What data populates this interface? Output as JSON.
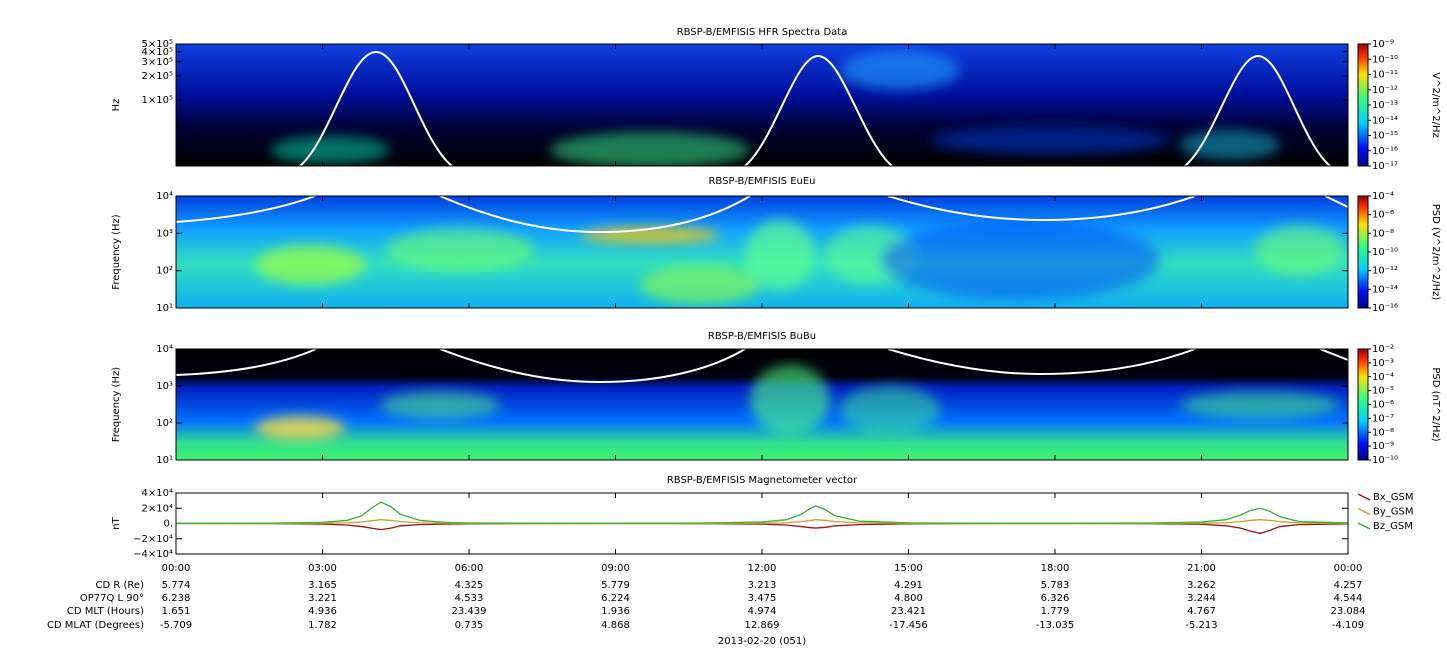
{
  "chart_data": [
    {
      "type": "spectrogram",
      "title": "RBSP-B/EMFISIS  HFR Spectra Data",
      "ylabel": "Hz",
      "log_y": true,
      "ylim": [
        15000,
        500000
      ],
      "yticks": [
        {
          "value": 100000,
          "label": "1×10⁵"
        },
        {
          "value": 200000,
          "label": "2×10⁵"
        },
        {
          "value": 300000,
          "label": "3×10⁵"
        },
        {
          "value": 400000,
          "label": "4×10⁵"
        },
        {
          "value": 500000,
          "label": "5×10⁵"
        }
      ],
      "clim": [
        1e-17,
        1e-09
      ],
      "clabel": "V^2/m^2/Hz",
      "cticks": [
        {
          "value": 1e-09,
          "label": "10⁻⁹"
        },
        {
          "value": 1e-10,
          "label": "10⁻¹⁰"
        },
        {
          "value": 1e-11,
          "label": "10⁻¹¹"
        },
        {
          "value": 1e-12,
          "label": "10⁻¹²"
        },
        {
          "value": 1e-13,
          "label": "10⁻¹³"
        },
        {
          "value": 1e-14,
          "label": "10⁻¹⁴"
        },
        {
          "value": 1e-15,
          "label": "10⁻¹⁵"
        },
        {
          "value": 1e-16,
          "label": "10⁻¹⁶"
        },
        {
          "value": 1e-17,
          "label": "10⁻¹⁷"
        }
      ]
    },
    {
      "type": "spectrogram",
      "title": "RBSP-B/EMFISIS  EuEu",
      "ylabel": "Frequency (Hz)",
      "log_y": true,
      "ylim": [
        10,
        10000
      ],
      "yticks": [
        {
          "value": 10,
          "label": "10¹"
        },
        {
          "value": 100,
          "label": "10²"
        },
        {
          "value": 1000,
          "label": "10³"
        },
        {
          "value": 10000,
          "label": "10⁴"
        }
      ],
      "clim": [
        1e-16,
        0.0001
      ],
      "clabel": "PSD (V^2/m^2/Hz)",
      "cticks": [
        {
          "value": 0.0001,
          "label": "10⁻⁴"
        },
        {
          "value": 1e-06,
          "label": "10⁻⁶"
        },
        {
          "value": 1e-08,
          "label": "10⁻⁸"
        },
        {
          "value": 1e-10,
          "label": "10⁻¹⁰"
        },
        {
          "value": 1e-12,
          "label": "10⁻¹²"
        },
        {
          "value": 1e-14,
          "label": "10⁻¹⁴"
        },
        {
          "value": 1e-16,
          "label": "10⁻¹⁶"
        }
      ]
    },
    {
      "type": "spectrogram",
      "title": "RBSP-B/EMFISIS  BuBu",
      "ylabel": "Frequency (Hz)",
      "log_y": true,
      "ylim": [
        10,
        10000
      ],
      "yticks": [
        {
          "value": 10,
          "label": "10¹"
        },
        {
          "value": 100,
          "label": "10²"
        },
        {
          "value": 1000,
          "label": "10³"
        },
        {
          "value": 10000,
          "label": "10⁴"
        }
      ],
      "clim": [
        1e-10,
        0.01
      ],
      "clabel": "PSD (nT^2/Hz)",
      "cticks": [
        {
          "value": 0.01,
          "label": "10⁻²"
        },
        {
          "value": 0.001,
          "label": "10⁻³"
        },
        {
          "value": 0.0001,
          "label": "10⁻⁴"
        },
        {
          "value": 1e-05,
          "label": "10⁻⁵"
        },
        {
          "value": 1e-06,
          "label": "10⁻⁶"
        },
        {
          "value": 1e-07,
          "label": "10⁻⁷"
        },
        {
          "value": 1e-08,
          "label": "10⁻⁸"
        },
        {
          "value": 1e-09,
          "label": "10⁻⁹"
        },
        {
          "value": 1e-10,
          "label": "10⁻¹⁰"
        }
      ]
    },
    {
      "type": "line",
      "title": "RBSP-B/EMFISIS  Magnetometer vector",
      "ylabel": "nT",
      "x": [
        0,
        1,
        2,
        3,
        3.5,
        3.8,
        4,
        4.2,
        4.4,
        4.6,
        5,
        5.5,
        6,
        7,
        8,
        9,
        10,
        11,
        12,
        12.5,
        12.8,
        13,
        13.1,
        13.3,
        13.5,
        14,
        15,
        16,
        17,
        18,
        19,
        20,
        21,
        21.5,
        21.8,
        22,
        22.2,
        22.4,
        22.6,
        23,
        24
      ],
      "xlim": [
        0,
        24
      ],
      "xticks": [
        {
          "value": 0,
          "label": "00:00"
        },
        {
          "value": 3,
          "label": "03:00"
        },
        {
          "value": 6,
          "label": "06:00"
        },
        {
          "value": 9,
          "label": "09:00"
        },
        {
          "value": 12,
          "label": "12:00"
        },
        {
          "value": 15,
          "label": "15:00"
        },
        {
          "value": 18,
          "label": "18:00"
        },
        {
          "value": 21,
          "label": "21:00"
        },
        {
          "value": 24,
          "label": "00:00"
        }
      ],
      "ylim": [
        -40000,
        40000
      ],
      "yticks": [
        {
          "value": -40000,
          "label": "−4×10⁴"
        },
        {
          "value": -20000,
          "label": "−2×10⁴"
        },
        {
          "value": 0,
          "label": "0."
        },
        {
          "value": 20000,
          "label": "2×10⁴"
        },
        {
          "value": 40000,
          "label": "4×10⁴"
        }
      ],
      "series": [
        {
          "name": "Bx_GSM",
          "color": "#a01010",
          "values": [
            0,
            0,
            -200,
            -800,
            -2000,
            -4000,
            -6000,
            -8000,
            -6000,
            -3000,
            -1500,
            -800,
            -400,
            -200,
            0,
            0,
            0,
            -300,
            -800,
            -2000,
            -4000,
            -5500,
            -6000,
            -5000,
            -3000,
            -1500,
            -500,
            -200,
            0,
            0,
            0,
            -300,
            -1000,
            -3000,
            -6000,
            -10000,
            -13000,
            -9000,
            -4000,
            -1500,
            -500
          ]
        },
        {
          "name": "By_GSM",
          "color": "#c8a030",
          "values": [
            0,
            0,
            100,
            300,
            800,
            2000,
            3500,
            5000,
            4000,
            2500,
            800,
            300,
            100,
            0,
            0,
            0,
            0,
            100,
            400,
            1000,
            2500,
            4000,
            5000,
            4000,
            2500,
            800,
            200,
            0,
            0,
            0,
            0,
            100,
            400,
            1000,
            2500,
            4000,
            5000,
            4000,
            2500,
            800,
            200
          ]
        },
        {
          "name": "Bz_GSM",
          "color": "#30b030",
          "values": [
            300,
            300,
            500,
            1500,
            4000,
            10000,
            20000,
            28000,
            22000,
            12000,
            4000,
            1500,
            700,
            400,
            300,
            300,
            400,
            800,
            2000,
            5000,
            12000,
            20000,
            23000,
            18000,
            10000,
            3000,
            800,
            400,
            300,
            300,
            400,
            700,
            2000,
            5000,
            11000,
            17000,
            20000,
            16000,
            9000,
            2500,
            800
          ]
        }
      ]
    }
  ],
  "ephemeris": {
    "rows": [
      {
        "label": "CD R (Re)",
        "values": [
          "5.774",
          "3.165",
          "4.325",
          "5.779",
          "3.213",
          "4.291",
          "5.783",
          "3.262",
          "4.257"
        ]
      },
      {
        "label": "OP77Q L 90°",
        "values": [
          "6.238",
          "3.221",
          "4.533",
          "6.224",
          "3.475",
          "4.800",
          "6.326",
          "3.244",
          "4.544"
        ]
      },
      {
        "label": "CD MLT (Hours)",
        "values": [
          "1.651",
          "4.936",
          "23.439",
          "1.936",
          "4.974",
          "23.421",
          "1.779",
          "4.767",
          "23.084"
        ]
      },
      {
        "label": "CD MLAT (Degrees)",
        "values": [
          "-5.709",
          "1.782",
          "0.735",
          "4.868",
          "12.869",
          "-17.456",
          "-13.035",
          "-5.213",
          "-4.109"
        ]
      }
    ],
    "date": "2013-02-20 (051)"
  }
}
